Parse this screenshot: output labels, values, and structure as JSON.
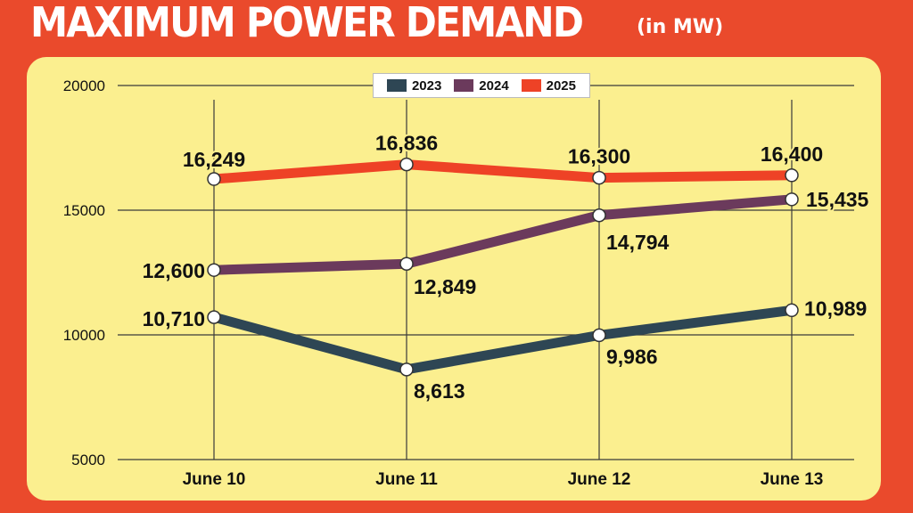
{
  "header": {
    "title": "MAXIMUM POWER DEMAND",
    "unit": "(in MW)"
  },
  "colors": {
    "background": "#ea4a2c",
    "panel": "#fbef8f",
    "s2023": "#2e4654",
    "s2024": "#6b3a5c",
    "s2025": "#ee4226"
  },
  "chart_data": {
    "type": "line",
    "title": "MAXIMUM POWER DEMAND",
    "subtitle": "(in MW)",
    "categories": [
      "June 10",
      "June 11",
      "June 12",
      "June 13"
    ],
    "ylim": [
      5000,
      20000
    ],
    "yticks": [
      "5000",
      "10000",
      "15000",
      "20000"
    ],
    "legend_position": "top-center",
    "series": [
      {
        "name": "2023",
        "color": "#2e4654",
        "values": [
          10710,
          8613,
          9986,
          10989
        ],
        "labels": [
          "10,710",
          "8,613",
          "9,986",
          "10,989"
        ]
      },
      {
        "name": "2024",
        "color": "#6b3a5c",
        "values": [
          12600,
          12849,
          14794,
          15435
        ],
        "labels": [
          "12,600",
          "12,849",
          "14,794",
          "15,435"
        ]
      },
      {
        "name": "2025",
        "color": "#ee4226",
        "values": [
          16249,
          16836,
          16300,
          16400
        ],
        "labels": [
          "16,249",
          "16,836",
          "16,300",
          "16,400"
        ]
      }
    ]
  }
}
